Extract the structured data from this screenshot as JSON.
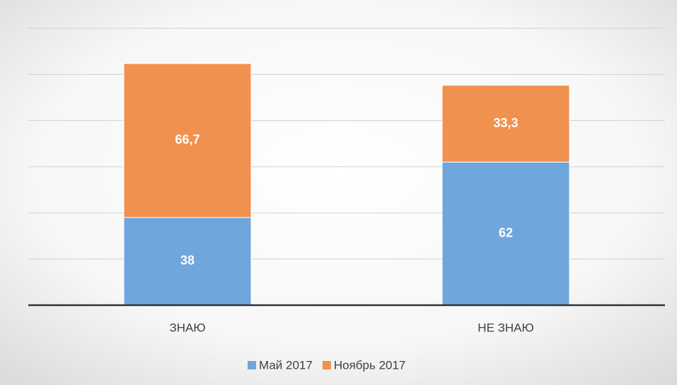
{
  "chart_data": {
    "type": "stacked_bar",
    "categories": [
      "ЗНАЮ",
      "НЕ ЗНАЮ"
    ],
    "series": [
      {
        "name": "Май 2017",
        "color": "#6fa6dc",
        "values": [
          38,
          62
        ],
        "value_labels": [
          "38",
          "62"
        ]
      },
      {
        "name": "Ноябрь 2017",
        "color": "#f0914f",
        "values": [
          66.7,
          33.3
        ],
        "value_labels": [
          "66,7",
          "33,3"
        ]
      }
    ],
    "ylim": [
      0,
      120
    ],
    "yticks": [
      0,
      20,
      40,
      60,
      80,
      100,
      120
    ],
    "grid": true,
    "legend": "bottom"
  }
}
